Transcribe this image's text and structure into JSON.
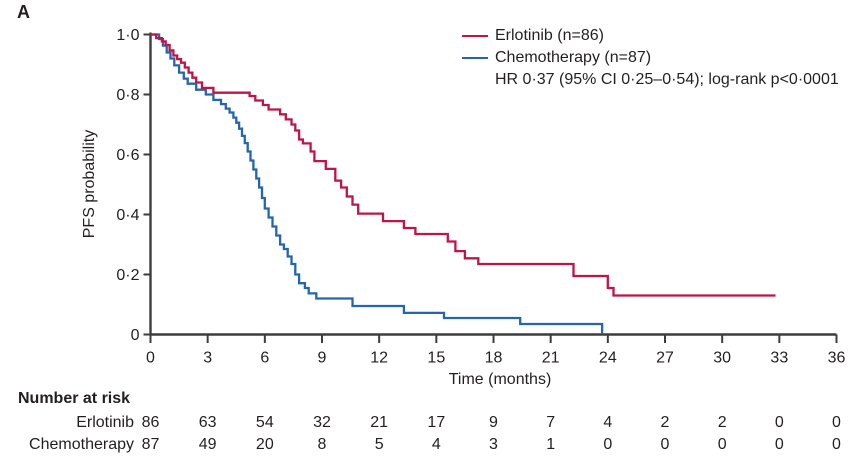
{
  "panel_label": "A",
  "colors": {
    "erlotinib": "#BE1548",
    "chemotherapy": "#2466AE",
    "axis": "#3D3D3D",
    "text": "#231F20",
    "background": "#FFFFFF"
  },
  "legend": {
    "items": [
      {
        "label": "Erlotinib (n=86)",
        "series": "erlotinib"
      },
      {
        "label": "Chemotherapy (n=87)",
        "series": "chemotherapy"
      }
    ],
    "annotation": "HR 0·37 (95% CI 0·25–0·54); log-rank p<0·0001"
  },
  "chart_data": {
    "type": "line",
    "subtype": "kaplan-meier-step",
    "title": "",
    "xlabel": "Time (months)",
    "ylabel": "PFS probability",
    "xlim": [
      0,
      36
    ],
    "ylim": [
      0,
      1
    ],
    "grid": false,
    "legend_position": "top-right",
    "xticks": [
      0,
      3,
      6,
      9,
      12,
      15,
      18,
      21,
      24,
      27,
      30,
      33,
      36
    ],
    "xtick_labels": [
      "0",
      "3",
      "6",
      "9",
      "12",
      "15",
      "18",
      "21",
      "24",
      "27",
      "30",
      "33",
      "36"
    ],
    "yticks": [
      0,
      0.2,
      0.4,
      0.6,
      0.8,
      1.0
    ],
    "ytick_labels": [
      "0",
      "0·2",
      "0·4",
      "0·6",
      "0·8",
      "1·0"
    ],
    "series": [
      {
        "name": "Erlotinib (n=86)",
        "color_key": "erlotinib",
        "end_time": 32.8,
        "points": [
          [
            0,
            1.0
          ],
          [
            0.3,
            0.988
          ],
          [
            0.6,
            0.977
          ],
          [
            0.8,
            0.965
          ],
          [
            1.0,
            0.947
          ],
          [
            1.2,
            0.93
          ],
          [
            1.4,
            0.918
          ],
          [
            1.6,
            0.906
          ],
          [
            1.8,
            0.89
          ],
          [
            2.0,
            0.873
          ],
          [
            2.2,
            0.856
          ],
          [
            2.4,
            0.84
          ],
          [
            2.7,
            0.822
          ],
          [
            3.3,
            0.806
          ],
          [
            5.2,
            0.795
          ],
          [
            5.5,
            0.78
          ],
          [
            5.9,
            0.765
          ],
          [
            6.2,
            0.75
          ],
          [
            6.8,
            0.734
          ],
          [
            7.1,
            0.717
          ],
          [
            7.4,
            0.7
          ],
          [
            7.6,
            0.68
          ],
          [
            7.8,
            0.65
          ],
          [
            8.0,
            0.637
          ],
          [
            8.4,
            0.61
          ],
          [
            8.6,
            0.578
          ],
          [
            9.2,
            0.552
          ],
          [
            9.7,
            0.513
          ],
          [
            10.0,
            0.49
          ],
          [
            10.3,
            0.46
          ],
          [
            10.6,
            0.433
          ],
          [
            10.9,
            0.403
          ],
          [
            12.2,
            0.378
          ],
          [
            13.3,
            0.355
          ],
          [
            13.9,
            0.335
          ],
          [
            15.6,
            0.31
          ],
          [
            16.0,
            0.278
          ],
          [
            16.5,
            0.254
          ],
          [
            17.2,
            0.235
          ],
          [
            22.2,
            0.195
          ],
          [
            24.0,
            0.155
          ],
          [
            24.3,
            0.13
          ]
        ]
      },
      {
        "name": "Chemotherapy (n=87)",
        "color_key": "chemotherapy",
        "end_time": 23.7,
        "points": [
          [
            0,
            1.0
          ],
          [
            0.45,
            0.985
          ],
          [
            0.65,
            0.963
          ],
          [
            0.85,
            0.94
          ],
          [
            1.05,
            0.92
          ],
          [
            1.25,
            0.897
          ],
          [
            1.5,
            0.873
          ],
          [
            1.75,
            0.853
          ],
          [
            1.95,
            0.836
          ],
          [
            2.4,
            0.816
          ],
          [
            2.9,
            0.8
          ],
          [
            3.3,
            0.782
          ],
          [
            3.7,
            0.768
          ],
          [
            3.95,
            0.753
          ],
          [
            4.15,
            0.74
          ],
          [
            4.35,
            0.723
          ],
          [
            4.5,
            0.706
          ],
          [
            4.65,
            0.686
          ],
          [
            4.8,
            0.662
          ],
          [
            4.95,
            0.638
          ],
          [
            5.1,
            0.61
          ],
          [
            5.25,
            0.58
          ],
          [
            5.4,
            0.55
          ],
          [
            5.55,
            0.52
          ],
          [
            5.7,
            0.49
          ],
          [
            5.85,
            0.455
          ],
          [
            6.0,
            0.42
          ],
          [
            6.2,
            0.39
          ],
          [
            6.4,
            0.36
          ],
          [
            6.6,
            0.33
          ],
          [
            6.8,
            0.3
          ],
          [
            7.0,
            0.285
          ],
          [
            7.2,
            0.26
          ],
          [
            7.4,
            0.235
          ],
          [
            7.6,
            0.2
          ],
          [
            7.8,
            0.171
          ],
          [
            8.1,
            0.155
          ],
          [
            8.3,
            0.137
          ],
          [
            8.7,
            0.12
          ],
          [
            10.6,
            0.095
          ],
          [
            13.3,
            0.072
          ],
          [
            15.4,
            0.055
          ],
          [
            19.4,
            0.035
          ],
          [
            23.7,
            0.004
          ]
        ]
      }
    ]
  },
  "risk_table": {
    "title": "Number at risk",
    "timepoints": [
      0,
      3,
      6,
      9,
      12,
      15,
      18,
      21,
      24,
      27,
      30,
      33,
      36
    ],
    "rows": [
      {
        "label": "Erlotinib",
        "values": [
          86,
          63,
          54,
          32,
          21,
          17,
          9,
          7,
          4,
          2,
          2,
          0,
          0
        ]
      },
      {
        "label": "Chemotherapy",
        "values": [
          87,
          49,
          20,
          8,
          5,
          4,
          3,
          1,
          0,
          0,
          0,
          0,
          0
        ]
      }
    ]
  }
}
